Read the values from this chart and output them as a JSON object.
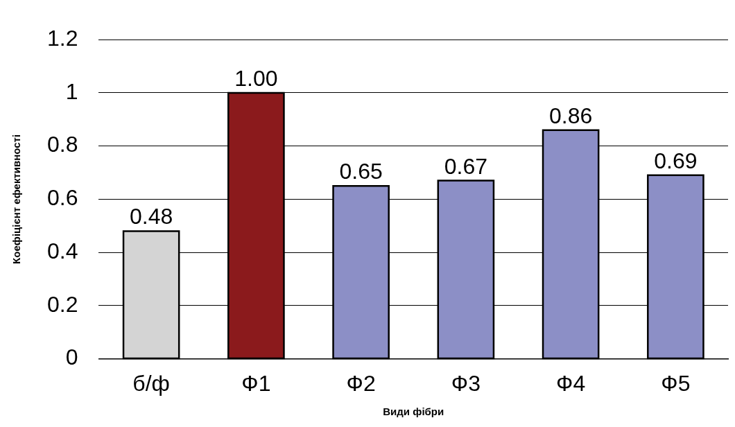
{
  "chart_data": {
    "type": "bar",
    "xlabel": "Види фібри",
    "ylabel": "Коефіцієнт ефективності",
    "categories": [
      "б/ф",
      "Ф1",
      "Ф2",
      "Ф3",
      "Ф4",
      "Ф5"
    ],
    "values": [
      0.48,
      1.0,
      0.65,
      0.67,
      0.86,
      0.69
    ],
    "value_labels": [
      "0.48",
      "1.00",
      "0.65",
      "0.67",
      "0.86",
      "0.69"
    ],
    "colors": [
      "#d4d4d4",
      "#8b1a1c",
      "#8c8fc6",
      "#8c8fc6",
      "#8c8fc6",
      "#8c8fc6"
    ],
    "ylim": [
      0,
      1.2
    ],
    "yticks": [
      0,
      0.2,
      0.4,
      0.6,
      0.8,
      1,
      1.2
    ],
    "grid": "y",
    "legend": false
  }
}
